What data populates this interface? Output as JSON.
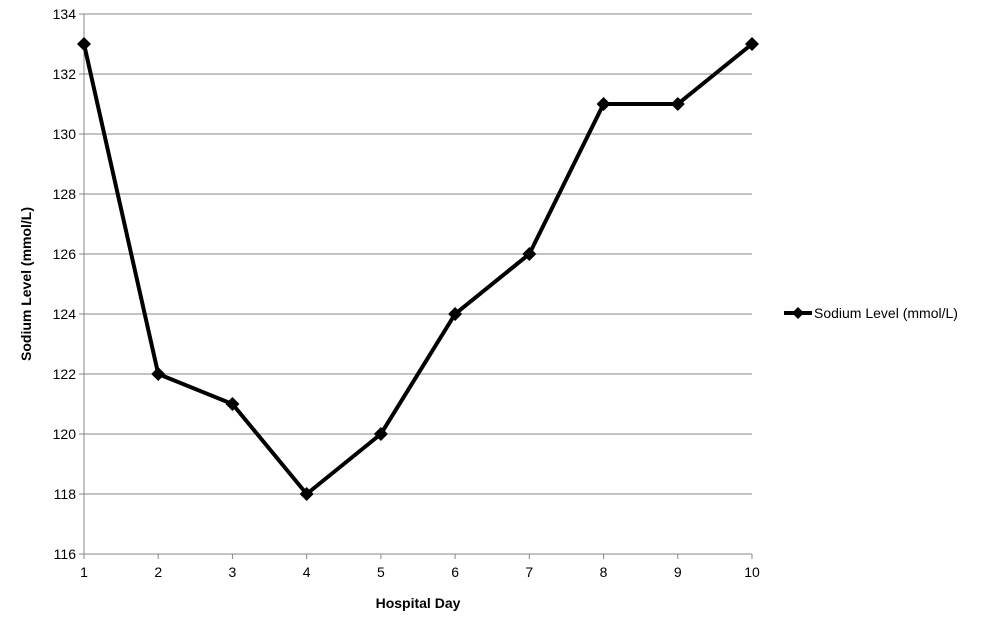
{
  "chart_data": {
    "type": "line",
    "title": "",
    "xlabel": "Hospital Day",
    "ylabel": "Sodium Level (mmol/L)",
    "x": [
      1,
      2,
      3,
      4,
      5,
      6,
      7,
      8,
      9,
      10
    ],
    "series": [
      {
        "name": "Sodium Level (mmol/L)",
        "values": [
          133,
          122,
          121,
          118,
          120,
          124,
          126,
          131,
          131,
          133
        ],
        "color": "#000000",
        "marker": "diamond"
      }
    ],
    "xlim": [
      1,
      10
    ],
    "ylim": [
      116,
      134
    ],
    "xticks": [
      "1",
      "2",
      "3",
      "4",
      "5",
      "6",
      "7",
      "8",
      "9",
      "10"
    ],
    "yticks": [
      "116",
      "118",
      "120",
      "122",
      "124",
      "126",
      "128",
      "130",
      "132",
      "134"
    ],
    "grid": "horizontal",
    "legend_position": "right"
  }
}
